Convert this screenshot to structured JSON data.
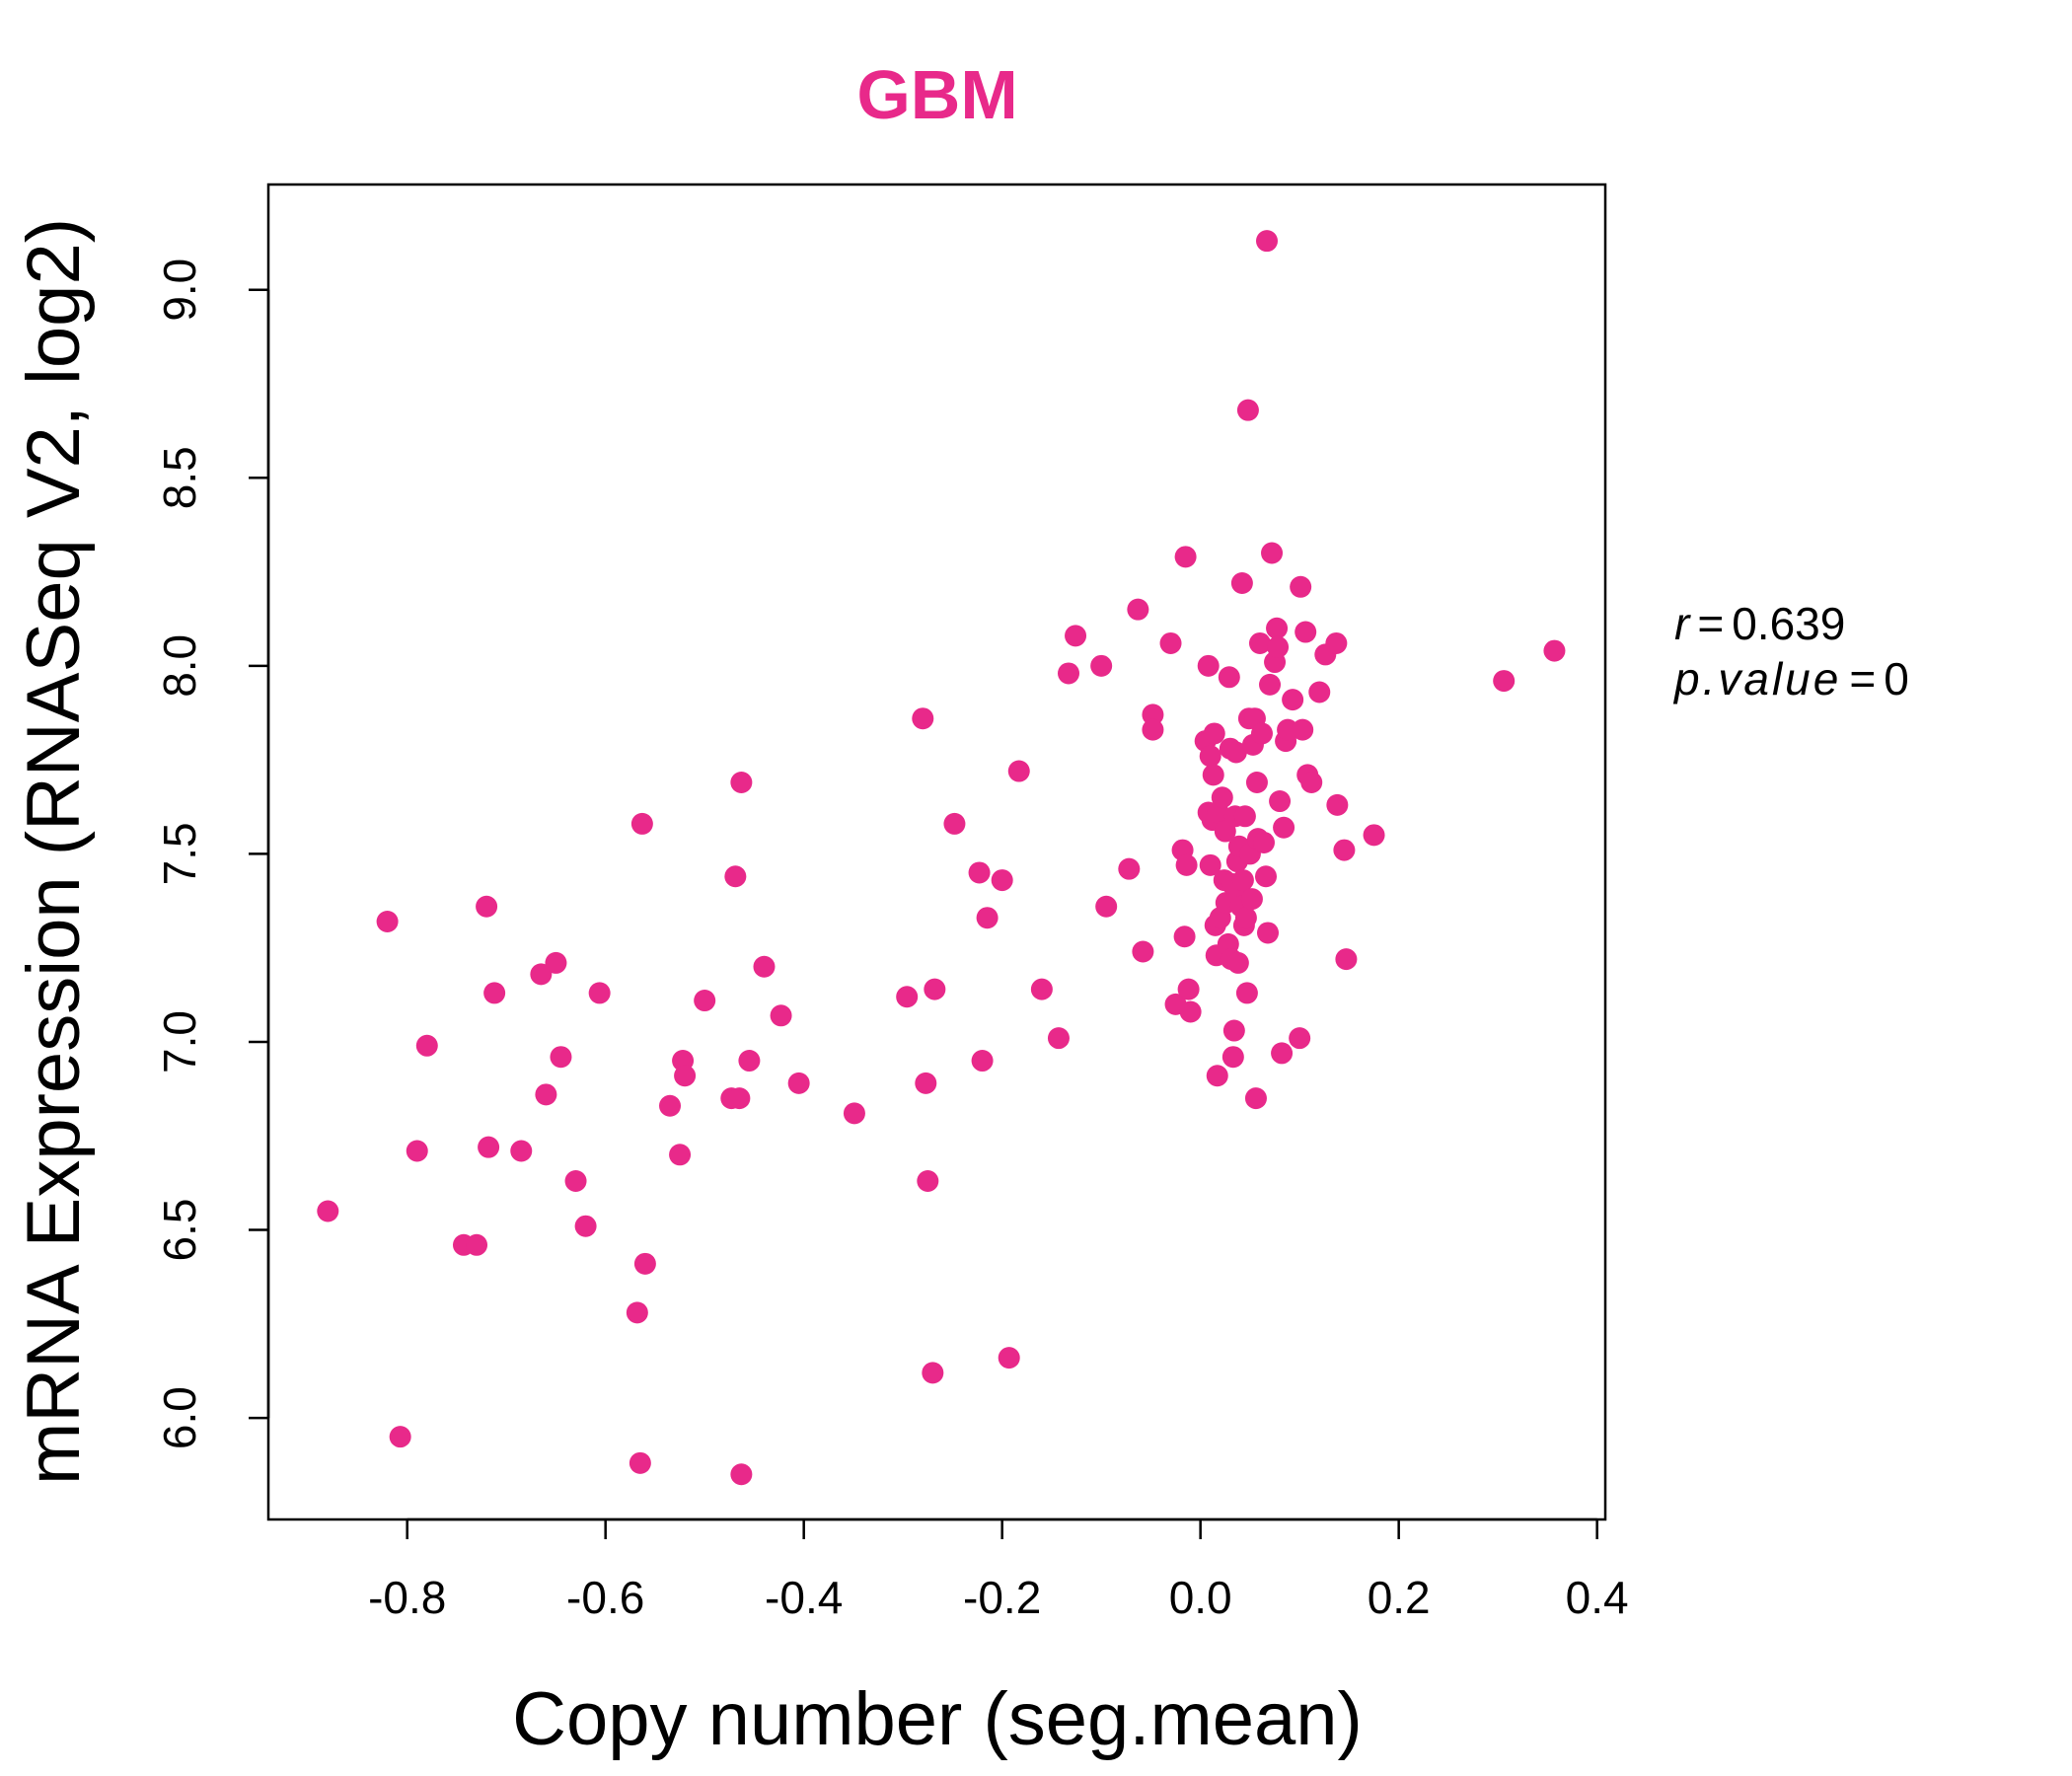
{
  "chart_data": {
    "type": "scatter",
    "title": "GBM",
    "xlabel": "Copy number (seg.mean)",
    "ylabel": "mRNA Expression (RNASeq V2, log2)",
    "xlim": [
      -0.94,
      0.4083
    ],
    "ylim": [
      5.73,
      9.28
    ],
    "xticks": [
      -0.8,
      -0.6,
      -0.4,
      -0.2,
      0.0,
      0.2,
      0.4
    ],
    "xtick_labels": [
      "-0.8",
      "-0.6",
      "-0.4",
      "-0.2",
      "0.0",
      "0.2",
      "0.4"
    ],
    "yticks": [
      6.0,
      6.5,
      7.0,
      7.5,
      8.0,
      8.5,
      9.0
    ],
    "ytick_labels": [
      "6.0",
      "6.5",
      "7.0",
      "7.5",
      "8.0",
      "8.5",
      "9.0"
    ],
    "grid": false,
    "legend": false,
    "point_color": "#E8298A",
    "stats": {
      "r_label": "r",
      "r_value": "0.639",
      "p_label": "p.value",
      "p_value": "0"
    },
    "points": [
      [
        -0.88,
        6.55
      ],
      [
        -0.82,
        7.32
      ],
      [
        -0.807,
        5.95
      ],
      [
        -0.79,
        6.71
      ],
      [
        -0.78,
        6.99
      ],
      [
        -0.743,
        6.46
      ],
      [
        -0.73,
        6.46
      ],
      [
        -0.72,
        7.36
      ],
      [
        -0.718,
        6.72
      ],
      [
        -0.712,
        7.13
      ],
      [
        -0.685,
        6.71
      ],
      [
        -0.665,
        7.18
      ],
      [
        -0.66,
        6.86
      ],
      [
        -0.65,
        7.21
      ],
      [
        -0.645,
        6.96
      ],
      [
        -0.63,
        6.63
      ],
      [
        -0.62,
        6.51
      ],
      [
        -0.606,
        7.13
      ],
      [
        -0.568,
        6.28
      ],
      [
        -0.563,
        7.58
      ],
      [
        -0.565,
        5.88
      ],
      [
        -0.56,
        6.41
      ],
      [
        -0.535,
        6.83
      ],
      [
        -0.525,
        6.7
      ],
      [
        -0.522,
        6.95
      ],
      [
        -0.52,
        6.91
      ],
      [
        -0.5,
        7.11
      ],
      [
        -0.473,
        6.85
      ],
      [
        -0.469,
        7.44
      ],
      [
        -0.465,
        6.85
      ],
      [
        -0.463,
        7.69
      ],
      [
        -0.463,
        5.85
      ],
      [
        -0.455,
        6.95
      ],
      [
        -0.44,
        7.2
      ],
      [
        -0.423,
        7.07
      ],
      [
        -0.405,
        6.89
      ],
      [
        -0.349,
        6.81
      ],
      [
        -0.296,
        7.12
      ],
      [
        -0.28,
        7.86
      ],
      [
        -0.277,
        6.89
      ],
      [
        -0.275,
        6.63
      ],
      [
        -0.27,
        6.12
      ],
      [
        -0.268,
        7.14
      ],
      [
        -0.248,
        7.58
      ],
      [
        -0.223,
        7.45
      ],
      [
        -0.22,
        6.95
      ],
      [
        -0.215,
        7.33
      ],
      [
        -0.2,
        7.43
      ],
      [
        -0.193,
        6.16
      ],
      [
        -0.183,
        7.72
      ],
      [
        -0.16,
        7.14
      ],
      [
        -0.143,
        7.01
      ],
      [
        -0.133,
        7.98
      ],
      [
        -0.126,
        8.08
      ],
      [
        -0.1,
        8.0
      ],
      [
        -0.095,
        7.36
      ],
      [
        -0.072,
        7.46
      ],
      [
        -0.063,
        8.15
      ],
      [
        -0.058,
        7.24
      ],
      [
        -0.048,
        7.87
      ],
      [
        -0.048,
        7.83
      ],
      [
        -0.03,
        8.06
      ],
      [
        -0.025,
        7.1
      ],
      [
        -0.018,
        7.51
      ],
      [
        -0.016,
        7.28
      ],
      [
        -0.015,
        8.29
      ],
      [
        -0.014,
        7.47
      ],
      [
        -0.012,
        7.14
      ],
      [
        -0.01,
        7.08
      ],
      [
        0.005,
        7.8
      ],
      [
        0.008,
        7.61
      ],
      [
        0.008,
        8.0
      ],
      [
        0.01,
        7.76
      ],
      [
        0.01,
        7.47
      ],
      [
        0.012,
        7.59
      ],
      [
        0.013,
        7.71
      ],
      [
        0.014,
        7.82
      ],
      [
        0.015,
        7.31
      ],
      [
        0.016,
        7.23
      ],
      [
        0.017,
        6.91
      ],
      [
        0.018,
        7.61
      ],
      [
        0.02,
        7.33
      ],
      [
        0.022,
        7.65
      ],
      [
        0.024,
        7.43
      ],
      [
        0.025,
        7.56
      ],
      [
        0.026,
        7.37
      ],
      [
        0.028,
        7.26
      ],
      [
        0.029,
        7.97
      ],
      [
        0.03,
        7.78
      ],
      [
        0.031,
        7.22
      ],
      [
        0.032,
        7.42
      ],
      [
        0.033,
        6.96
      ],
      [
        0.034,
        7.03
      ],
      [
        0.035,
        7.6
      ],
      [
        0.036,
        7.77
      ],
      [
        0.037,
        7.48
      ],
      [
        0.038,
        7.21
      ],
      [
        0.039,
        7.52
      ],
      [
        0.04,
        7.4
      ],
      [
        0.041,
        7.36
      ],
      [
        0.042,
        8.22
      ],
      [
        0.043,
        7.43
      ],
      [
        0.044,
        7.31
      ],
      [
        0.045,
        7.6
      ],
      [
        0.046,
        7.33
      ],
      [
        0.047,
        7.13
      ],
      [
        0.048,
        8.68
      ],
      [
        0.049,
        7.86
      ],
      [
        0.05,
        7.5
      ],
      [
        0.052,
        7.38
      ],
      [
        0.053,
        7.79
      ],
      [
        0.055,
        7.86
      ],
      [
        0.056,
        6.85
      ],
      [
        0.057,
        7.69
      ],
      [
        0.058,
        7.54
      ],
      [
        0.06,
        8.06
      ],
      [
        0.062,
        7.82
      ],
      [
        0.064,
        7.53
      ],
      [
        0.066,
        7.44
      ],
      [
        0.067,
        9.13
      ],
      [
        0.068,
        7.29
      ],
      [
        0.07,
        7.95
      ],
      [
        0.072,
        8.3
      ],
      [
        0.075,
        8.01
      ],
      [
        0.077,
        8.1
      ],
      [
        0.078,
        8.05
      ],
      [
        0.08,
        7.64
      ],
      [
        0.082,
        6.97
      ],
      [
        0.084,
        7.57
      ],
      [
        0.086,
        7.8
      ],
      [
        0.088,
        7.83
      ],
      [
        0.093,
        7.91
      ],
      [
        0.1,
        7.01
      ],
      [
        0.101,
        8.21
      ],
      [
        0.103,
        7.83
      ],
      [
        0.106,
        8.09
      ],
      [
        0.108,
        7.71
      ],
      [
        0.112,
        7.69
      ],
      [
        0.12,
        7.93
      ],
      [
        0.126,
        8.03
      ],
      [
        0.137,
        8.06
      ],
      [
        0.138,
        7.63
      ],
      [
        0.145,
        7.51
      ],
      [
        0.147,
        7.22
      ],
      [
        0.175,
        7.55
      ],
      [
        0.306,
        7.96
      ],
      [
        0.357,
        8.04
      ]
    ]
  }
}
